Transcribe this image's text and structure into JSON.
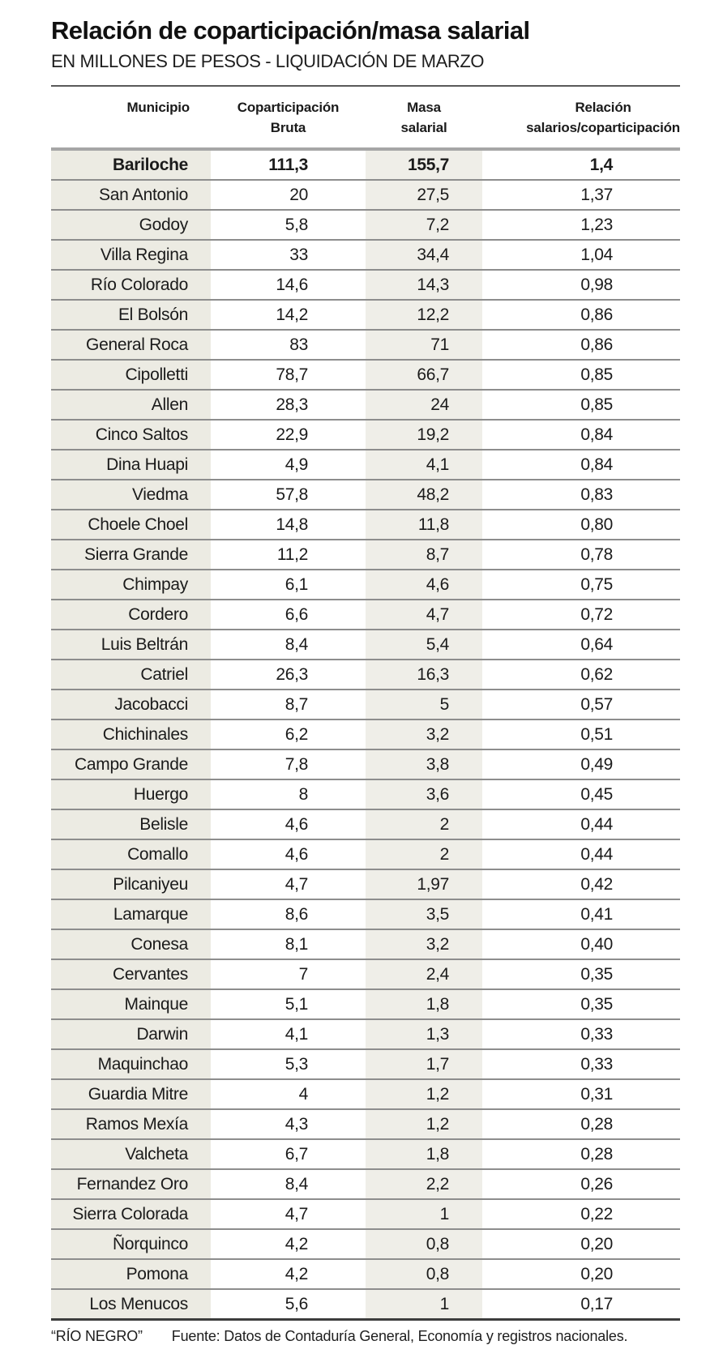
{
  "header": {
    "title": "Relación de coparticipación/masa salarial",
    "subtitle": "EN MILLONES DE PESOS - LIQUIDACIÓN DE MARZO"
  },
  "table": {
    "header_lines": [
      [
        "Municipio"
      ],
      [
        "Coparticipación",
        "Bruta"
      ],
      [
        "Masa",
        "salarial"
      ],
      [
        "Relación",
        "salarios/coparticipación"
      ]
    ]
  },
  "footer": {
    "credit": "“RÍO NEGRO”",
    "source": "Fuente: Datos de Contaduría General, Economía y registros nacionales."
  },
  "colors": {
    "column_shade_muni": "#ecebe3",
    "column_shade_masa": "#efeee8",
    "row_line": "#8d8d8d",
    "header_rule": "#a6a6a6",
    "top_rule": "#5a5a5a",
    "bottom_rule": "#3d3d3d"
  },
  "chart_data": {
    "type": "table",
    "title": "Relación de coparticipación/masa salarial",
    "subtitle": "EN MILLONES DE PESOS - LIQUIDACIÓN DE MARZO",
    "columns": [
      "Municipio",
      "Coparticipación Bruta",
      "Masa salarial",
      "Relación salarios/coparticipación"
    ],
    "rows": [
      {
        "municipio": "Bariloche",
        "coparticipacion": "111,3",
        "masa": "155,7",
        "relacion": "1,4",
        "bold": true
      },
      {
        "municipio": "San Antonio",
        "coparticipacion": "20",
        "masa": "27,5",
        "relacion": "1,37",
        "bold": false
      },
      {
        "municipio": "Godoy",
        "coparticipacion": "5,8",
        "masa": "7,2",
        "relacion": "1,23",
        "bold": false
      },
      {
        "municipio": "Villa Regina",
        "coparticipacion": "33",
        "masa": "34,4",
        "relacion": "1,04",
        "bold": false
      },
      {
        "municipio": "Río Colorado",
        "coparticipacion": "14,6",
        "masa": "14,3",
        "relacion": "0,98",
        "bold": false
      },
      {
        "municipio": "El Bolsón",
        "coparticipacion": "14,2",
        "masa": "12,2",
        "relacion": "0,86",
        "bold": false
      },
      {
        "municipio": "General Roca",
        "coparticipacion": "83",
        "masa": "71",
        "relacion": "0,86",
        "bold": false
      },
      {
        "municipio": "Cipolletti",
        "coparticipacion": "78,7",
        "masa": "66,7",
        "relacion": "0,85",
        "bold": false
      },
      {
        "municipio": "Allen",
        "coparticipacion": "28,3",
        "masa": "24",
        "relacion": "0,85",
        "bold": false
      },
      {
        "municipio": "Cinco Saltos",
        "coparticipacion": "22,9",
        "masa": "19,2",
        "relacion": "0,84",
        "bold": false
      },
      {
        "municipio": "Dina Huapi",
        "coparticipacion": "4,9",
        "masa": "4,1",
        "relacion": "0,84",
        "bold": false
      },
      {
        "municipio": "Viedma",
        "coparticipacion": "57,8",
        "masa": "48,2",
        "relacion": "0,83",
        "bold": false
      },
      {
        "municipio": "Choele Choel",
        "coparticipacion": "14,8",
        "masa": "11,8",
        "relacion": "0,80",
        "bold": false
      },
      {
        "municipio": "Sierra Grande",
        "coparticipacion": "11,2",
        "masa": "8,7",
        "relacion": "0,78",
        "bold": false
      },
      {
        "municipio": "Chimpay",
        "coparticipacion": "6,1",
        "masa": "4,6",
        "relacion": "0,75",
        "bold": false
      },
      {
        "municipio": "Cordero",
        "coparticipacion": "6,6",
        "masa": "4,7",
        "relacion": "0,72",
        "bold": false
      },
      {
        "municipio": "Luis Beltrán",
        "coparticipacion": "8,4",
        "masa": "5,4",
        "relacion": "0,64",
        "bold": false
      },
      {
        "municipio": "Catriel",
        "coparticipacion": "26,3",
        "masa": "16,3",
        "relacion": "0,62",
        "bold": false
      },
      {
        "municipio": "Jacobacci",
        "coparticipacion": "8,7",
        "masa": "5",
        "relacion": "0,57",
        "bold": false
      },
      {
        "municipio": "Chichinales",
        "coparticipacion": "6,2",
        "masa": "3,2",
        "relacion": "0,51",
        "bold": false
      },
      {
        "municipio": "Campo Grande",
        "coparticipacion": "7,8",
        "masa": "3,8",
        "relacion": "0,49",
        "bold": false
      },
      {
        "municipio": "Huergo",
        "coparticipacion": "8",
        "masa": "3,6",
        "relacion": "0,45",
        "bold": false
      },
      {
        "municipio": "Belisle",
        "coparticipacion": "4,6",
        "masa": "2",
        "relacion": "0,44",
        "bold": false
      },
      {
        "municipio": "Comallo",
        "coparticipacion": "4,6",
        "masa": "2",
        "relacion": "0,44",
        "bold": false
      },
      {
        "municipio": "Pilcaniyeu",
        "coparticipacion": "4,7",
        "masa": "1,97",
        "relacion": "0,42",
        "bold": false
      },
      {
        "municipio": "Lamarque",
        "coparticipacion": "8,6",
        "masa": "3,5",
        "relacion": "0,41",
        "bold": false
      },
      {
        "municipio": "Conesa",
        "coparticipacion": "8,1",
        "masa": "3,2",
        "relacion": "0,40",
        "bold": false
      },
      {
        "municipio": "Cervantes",
        "coparticipacion": "7",
        "masa": "2,4",
        "relacion": "0,35",
        "bold": false
      },
      {
        "municipio": "Mainque",
        "coparticipacion": "5,1",
        "masa": "1,8",
        "relacion": "0,35",
        "bold": false
      },
      {
        "municipio": "Darwin",
        "coparticipacion": "4,1",
        "masa": "1,3",
        "relacion": "0,33",
        "bold": false
      },
      {
        "municipio": "Maquinchao",
        "coparticipacion": "5,3",
        "masa": "1,7",
        "relacion": "0,33",
        "bold": false
      },
      {
        "municipio": "Guardia Mitre",
        "coparticipacion": "4",
        "masa": "1,2",
        "relacion": "0,31",
        "bold": false
      },
      {
        "municipio": "Ramos Mexía",
        "coparticipacion": "4,3",
        "masa": "1,2",
        "relacion": "0,28",
        "bold": false
      },
      {
        "municipio": "Valcheta",
        "coparticipacion": "6,7",
        "masa": "1,8",
        "relacion": "0,28",
        "bold": false
      },
      {
        "municipio": "Fernandez Oro",
        "coparticipacion": "8,4",
        "masa": "2,2",
        "relacion": "0,26",
        "bold": false
      },
      {
        "municipio": "Sierra Colorada",
        "coparticipacion": "4,7",
        "masa": "1",
        "relacion": "0,22",
        "bold": false
      },
      {
        "municipio": "Ñorquinco",
        "coparticipacion": "4,2",
        "masa": "0,8",
        "relacion": "0,20",
        "bold": false
      },
      {
        "municipio": "Pomona",
        "coparticipacion": "4,2",
        "masa": "0,8",
        "relacion": "0,20",
        "bold": false
      },
      {
        "municipio": "Los Menucos",
        "coparticipacion": "5,6",
        "masa": "1",
        "relacion": "0,17",
        "bold": false
      }
    ]
  }
}
